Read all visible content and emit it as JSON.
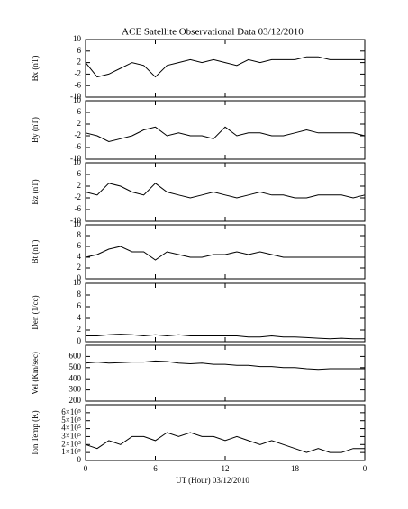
{
  "chart_data": [
    {
      "type": "line",
      "title": "ACE Satellite Observational Data   03/12/2010",
      "ylabel": "Bx (nT)",
      "x": [
        0,
        1,
        2,
        3,
        4,
        5,
        6,
        7,
        8,
        9,
        10,
        11,
        12,
        13,
        14,
        15,
        16,
        17,
        18,
        19,
        20,
        21,
        22,
        23,
        24
      ],
      "series": [
        {
          "name": "Bx",
          "color": "#000000",
          "values": [
            2,
            -3,
            -2,
            0,
            2,
            1,
            -3,
            1,
            2,
            3,
            2,
            3,
            2,
            1,
            3,
            2,
            3,
            3,
            3,
            4,
            4,
            3,
            3,
            3,
            3
          ]
        }
      ],
      "xlim": [
        0,
        24
      ],
      "ylim": [
        -10,
        10
      ],
      "yticks": [
        -10,
        -6,
        -2,
        2,
        6,
        10
      ]
    },
    {
      "type": "line",
      "ylabel": "By (nT)",
      "x": [
        0,
        1,
        2,
        3,
        4,
        5,
        6,
        7,
        8,
        9,
        10,
        11,
        12,
        13,
        14,
        15,
        16,
        17,
        18,
        19,
        20,
        21,
        22,
        23,
        24
      ],
      "series": [
        {
          "name": "By",
          "color": "#000000",
          "values": [
            -1,
            -2,
            -4,
            -3,
            -2,
            0,
            1,
            -2,
            -1,
            -2,
            -2,
            -3,
            1,
            -2,
            -1,
            -1,
            -2,
            -2,
            -1,
            0,
            -1,
            -1,
            -1,
            -1,
            -2
          ]
        }
      ],
      "xlim": [
        0,
        24
      ],
      "ylim": [
        -10,
        10
      ],
      "yticks": [
        -10,
        -6,
        -2,
        2,
        6,
        10
      ]
    },
    {
      "type": "line",
      "ylabel": "Bz (nT)",
      "x": [
        0,
        1,
        2,
        3,
        4,
        5,
        6,
        7,
        8,
        9,
        10,
        11,
        12,
        13,
        14,
        15,
        16,
        17,
        18,
        19,
        20,
        21,
        22,
        23,
        24
      ],
      "series": [
        {
          "name": "Bz",
          "color": "#000000",
          "values": [
            0,
            -1,
            3,
            2,
            0,
            -1,
            3,
            0,
            -1,
            -2,
            -1,
            0,
            -1,
            -2,
            -1,
            0,
            -1,
            -1,
            -2,
            -2,
            -1,
            -1,
            -1,
            -2,
            -1
          ]
        }
      ],
      "xlim": [
        0,
        24
      ],
      "ylim": [
        -10,
        10
      ],
      "yticks": [
        -10,
        -6,
        -2,
        2,
        6,
        10
      ]
    },
    {
      "type": "line",
      "ylabel": "Bt (nT)",
      "x": [
        0,
        1,
        2,
        3,
        4,
        5,
        6,
        7,
        8,
        9,
        10,
        11,
        12,
        13,
        14,
        15,
        16,
        17,
        18,
        19,
        20,
        21,
        22,
        23,
        24
      ],
      "series": [
        {
          "name": "Bt",
          "color": "#000000",
          "values": [
            4,
            4.5,
            5.5,
            6,
            5,
            5,
            3.5,
            5,
            4.5,
            4,
            4,
            4.5,
            4.5,
            5,
            4.5,
            5,
            4.5,
            4,
            4,
            4,
            4,
            4,
            4,
            4,
            4
          ]
        }
      ],
      "xlim": [
        0,
        24
      ],
      "ylim": [
        0,
        10
      ],
      "yticks": [
        0,
        2,
        4,
        6,
        8,
        10
      ]
    },
    {
      "type": "line",
      "ylabel": "Den (1/cc)",
      "x": [
        0,
        1,
        2,
        3,
        4,
        5,
        6,
        7,
        8,
        9,
        10,
        11,
        12,
        13,
        14,
        15,
        16,
        17,
        18,
        19,
        20,
        21,
        22,
        23,
        24
      ],
      "series": [
        {
          "name": "Den",
          "color": "#000000",
          "values": [
            1,
            1,
            1.2,
            1.3,
            1.2,
            1,
            1.2,
            1,
            1.2,
            1,
            1,
            1,
            1,
            1,
            0.8,
            0.8,
            1,
            0.8,
            0.8,
            0.7,
            0.6,
            0.5,
            0.6,
            0.5,
            0.5
          ]
        }
      ],
      "xlim": [
        0,
        24
      ],
      "ylim": [
        0,
        10
      ],
      "yticks": [
        0,
        2,
        4,
        6,
        8,
        10
      ]
    },
    {
      "type": "line",
      "ylabel": "Vel (Km/sec)",
      "x": [
        0,
        1,
        2,
        3,
        4,
        5,
        6,
        7,
        8,
        9,
        10,
        11,
        12,
        13,
        14,
        15,
        16,
        17,
        18,
        19,
        20,
        21,
        22,
        23,
        24
      ],
      "series": [
        {
          "name": "Vel",
          "color": "#000000",
          "values": [
            540,
            550,
            540,
            545,
            550,
            550,
            560,
            555,
            540,
            535,
            540,
            530,
            530,
            520,
            520,
            510,
            510,
            500,
            500,
            490,
            485,
            490,
            490,
            490,
            490
          ]
        }
      ],
      "xlim": [
        0,
        24
      ],
      "ylim": [
        200,
        700
      ],
      "yticks": [
        200,
        300,
        400,
        500,
        600
      ]
    },
    {
      "type": "line",
      "ylabel": "Ion Temp (K)",
      "xlabel": "UT (Hour)  03/12/2010",
      "x": [
        0,
        1,
        2,
        3,
        4,
        5,
        6,
        7,
        8,
        9,
        10,
        11,
        12,
        13,
        14,
        15,
        16,
        17,
        18,
        19,
        20,
        21,
        22,
        23,
        24
      ],
      "series": [
        {
          "name": "Ion Temp",
          "color": "#000000",
          "values": [
            200000,
            150000,
            250000,
            200000,
            300000,
            300000,
            250000,
            350000,
            300000,
            350000,
            300000,
            300000,
            250000,
            300000,
            250000,
            200000,
            250000,
            200000,
            150000,
            100000,
            150000,
            100000,
            100000,
            150000,
            150000
          ]
        }
      ],
      "xlim": [
        0,
        24
      ],
      "ylim": [
        0,
        700000
      ],
      "yticks": [
        0,
        {
          "value": 100000,
          "label": "1×10⁵"
        },
        {
          "value": 200000,
          "label": "2×10⁵"
        },
        {
          "value": 300000,
          "label": "3×10⁵"
        },
        {
          "value": 400000,
          "label": "4×10⁵"
        },
        {
          "value": 500000,
          "label": "5×10⁵"
        },
        {
          "value": 600000,
          "label": "6×10⁵"
        }
      ],
      "xticks": [
        0,
        6,
        12,
        18,
        {
          "value": 24,
          "label": "0"
        }
      ]
    }
  ]
}
